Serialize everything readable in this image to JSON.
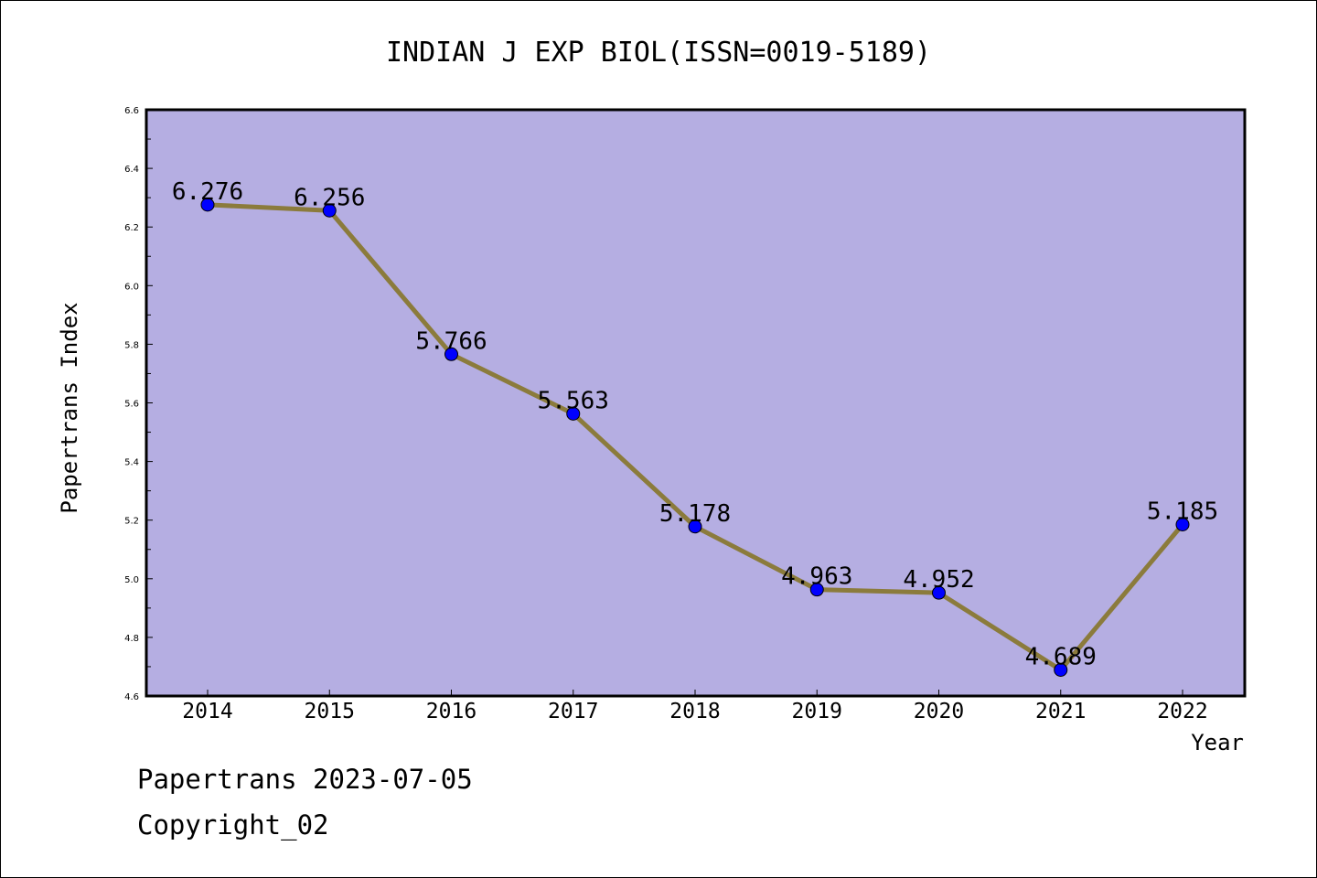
{
  "chart_data": {
    "type": "line",
    "title": "INDIAN J EXP BIOL(ISSN=0019-5189)",
    "xlabel": "Year",
    "ylabel": "Papertrans Index",
    "categories": [
      "2014",
      "2015",
      "2016",
      "2017",
      "2018",
      "2019",
      "2020",
      "2021",
      "2022"
    ],
    "values": [
      6.276,
      6.256,
      5.766,
      5.563,
      5.178,
      4.963,
      4.952,
      4.689,
      5.185
    ],
    "data_labels": [
      "6.276",
      "6.256",
      "5.766",
      "5.563",
      "5.178",
      "4.963",
      "4.952",
      "4.689",
      "5.185"
    ],
    "ylim": [
      4.6,
      6.6
    ],
    "yticks": [
      "4.6",
      "4.8",
      "5.0",
      "5.2",
      "5.4",
      "5.6",
      "5.8",
      "6.0",
      "6.2",
      "6.4",
      "6.6"
    ],
    "grid": false,
    "legend": "none",
    "colors": {
      "plot_background": "#b5aee2",
      "line": "#8b7b3c",
      "marker": "#0000ff"
    }
  },
  "footer": {
    "date_line": "Papertrans 2023-07-05",
    "copyright_line": "Copyright_02"
  }
}
